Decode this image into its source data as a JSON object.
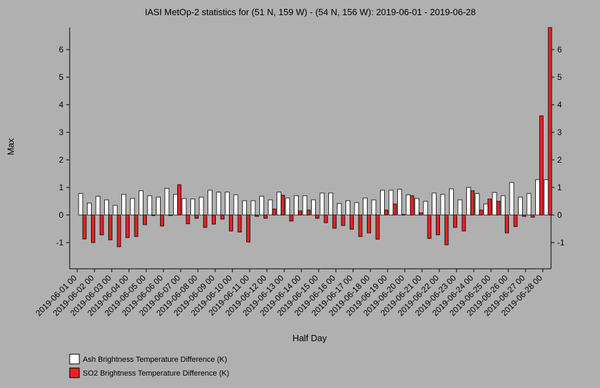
{
  "chart_data": {
    "type": "bar",
    "title": "IASI MetOp-2 statistics for (51 N, 159 W) - (54 N, 156 W): 2019-06-01 - 2019-06-28",
    "x_label": "Half Day",
    "y_label": "Max",
    "categories": [
      "2019-06-01 00",
      null,
      "2019-06-02 00",
      null,
      "2019-06-03 00",
      null,
      "2019-06-04 00",
      null,
      "2019-06-05 00",
      null,
      "2019-06-06 00",
      null,
      "2019-06-07 00",
      null,
      "2019-06-08 00",
      null,
      "2019-06-09 00",
      null,
      "2019-06-10 00",
      null,
      "2019-06-11 00",
      null,
      "2019-06-12 00",
      null,
      "2019-06-13 00",
      null,
      "2019-06-14 00",
      null,
      "2019-06-15 00",
      null,
      "2019-06-16 00",
      null,
      "2019-06-17 00",
      null,
      "2019-06-18 00",
      null,
      "2019-06-19 00",
      null,
      "2019-06-20 00",
      null,
      "2019-06-21 00",
      null,
      "2019-06-22 00",
      null,
      "2019-06-23 00",
      null,
      "2019-06-24 00",
      null,
      "2019-06-25 00",
      null,
      "2019-06-26 00",
      null,
      "2019-06-27 00",
      null,
      "2019-06-28 00"
    ],
    "series": [
      {
        "name": "Ash Brightness Temperature Difference (K)",
        "color": "#ffffff",
        "values": [
          0.78,
          0.43,
          0.68,
          0.55,
          0.35,
          0.75,
          0.6,
          0.88,
          0.7,
          0.65,
          0.97,
          0.75,
          0.6,
          0.58,
          0.65,
          0.9,
          0.83,
          0.83,
          0.73,
          0.52,
          0.52,
          0.68,
          0.55,
          0.83,
          0.62,
          0.7,
          0.7,
          0.55,
          0.8,
          0.8,
          0.42,
          0.52,
          0.45,
          0.62,
          0.55,
          0.9,
          0.9,
          0.93,
          0.73,
          0.6,
          0.5,
          0.8,
          0.75,
          0.95,
          0.55,
          1.0,
          0.78,
          0.4,
          0.82,
          0.7,
          1.18,
          0.65,
          0.78,
          1.28,
          1.28
        ]
      },
      {
        "name": "SO2 Brightness Temperature Difference (K)",
        "color": "#e52222",
        "values": [
          -0.87,
          -1.0,
          -0.72,
          -0.9,
          -1.15,
          -0.82,
          -0.78,
          -0.35,
          -0.02,
          -0.4,
          -0.02,
          1.1,
          -0.32,
          -0.12,
          -0.45,
          -0.33,
          -0.15,
          -0.58,
          -0.62,
          -0.98,
          -0.05,
          -0.12,
          0.22,
          0.72,
          -0.22,
          0.15,
          0.18,
          -0.12,
          -0.28,
          -0.48,
          -0.38,
          -0.52,
          -0.78,
          -0.65,
          -0.88,
          0.18,
          0.4,
          0.02,
          0.7,
          0.08,
          -0.85,
          -0.72,
          -1.08,
          -0.45,
          -0.58,
          0.88,
          0.18,
          0.58,
          0.5,
          -0.65,
          -0.42,
          -0.05,
          -0.08,
          3.6,
          6.8
        ]
      }
    ],
    "ylim": [
      -1.95,
      6.8
    ],
    "yticks": [
      -1,
      0,
      1,
      2,
      3,
      4,
      5,
      6
    ],
    "right_axis": true,
    "grid": false
  }
}
